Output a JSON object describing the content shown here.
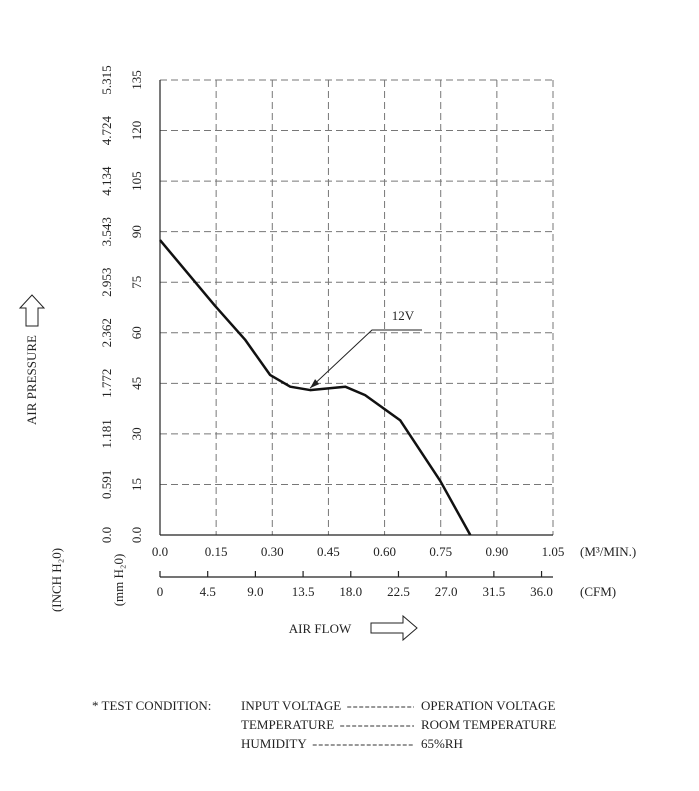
{
  "chart_data": {
    "type": "line",
    "x_label": "AIR FLOW",
    "y_label": "AIR PRESSURE",
    "x_unit": "(M³/MIN.)",
    "x2_unit": "(CFM)",
    "y_unit": "(mm H₂0)",
    "y2_unit": "(INCH H₂0)",
    "xlim": [
      0,
      1.05
    ],
    "xticks": [
      {
        "value": 0,
        "label": "0.0"
      },
      0.15,
      {
        "value": 0.3,
        "label": "0.30"
      },
      0.45,
      {
        "value": 0.6,
        "label": "0.60"
      },
      0.75,
      {
        "value": 0.9,
        "label": "0.90"
      },
      1.05
    ],
    "x2lim": [
      0,
      37.08
    ],
    "x2ticks": [
      0,
      4.5,
      {
        "value": 9,
        "label": "9.0"
      },
      13.5,
      {
        "value": 18,
        "label": "18.0"
      },
      22.5,
      {
        "value": 27,
        "label": "27.0"
      },
      31.5,
      {
        "value": 36,
        "label": "36.0"
      }
    ],
    "ylim": [
      0,
      135
    ],
    "yticks": [
      {
        "value": 0,
        "label": "0.0"
      },
      15,
      30,
      45,
      60,
      75,
      90,
      105,
      120,
      135
    ],
    "y2lim": [
      0,
      5.315
    ],
    "y2ticks": [
      {
        "value": 0,
        "label": "0.0"
      },
      0.591,
      1.181,
      1.772,
      2.362,
      2.953,
      3.543,
      4.134,
      4.724,
      5.315
    ],
    "grid": true,
    "x": [
      0,
      0.147,
      0.227,
      0.294,
      0.348,
      0.401,
      0.495,
      0.548,
      0.642,
      0.749,
      0.829
    ],
    "series": [
      {
        "name": "12V",
        "color": "#111111",
        "values": [
          87.5,
          68,
          58,
          47.5,
          44,
          43,
          44,
          41.5,
          34,
          16,
          0
        ]
      }
    ]
  },
  "test_condition": {
    "prefix": "* TEST CONDITION:",
    "rows": [
      {
        "name": "INPUT VOLTAGE",
        "value": "OPERATION VOLTAGE"
      },
      {
        "name": "TEMPERATURE",
        "value": "ROOM TEMPERATURE"
      },
      {
        "name": "HUMIDITY",
        "value": "65%RH"
      }
    ]
  }
}
